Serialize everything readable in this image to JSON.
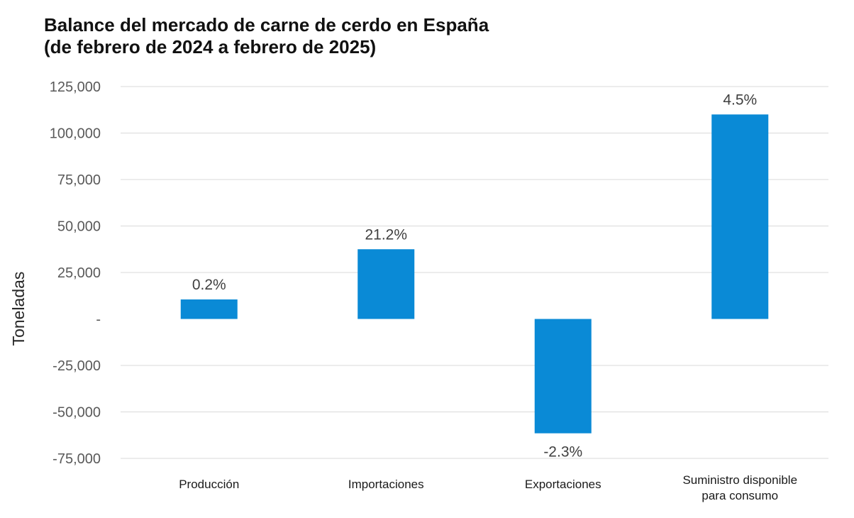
{
  "chart_data": {
    "type": "bar",
    "title": [
      "Balance del mercado de carne de cerdo en España",
      "(de febrero de 2024 a febrero de 2025)"
    ],
    "xlabel": "",
    "ylabel": "Toneladas",
    "categories": [
      [
        "Producción"
      ],
      [
        "Importaciones"
      ],
      [
        "Exportaciones"
      ],
      [
        "Suministro disponible",
        "para consumo"
      ]
    ],
    "values": [
      10500,
      37500,
      -61500,
      110000
    ],
    "data_labels": [
      "0.2%",
      "21.2%",
      "-2.3%",
      "4.5%"
    ],
    "ylim": [
      -75000,
      125000
    ],
    "yticks": [
      125000,
      100000,
      75000,
      50000,
      25000,
      0,
      -25000,
      -50000,
      -75000
    ],
    "ytick_labels": [
      "125,000",
      "100,000",
      "75,000",
      "50,000",
      "25,000",
      "-",
      "-25,000",
      "-50,000",
      "-75,000"
    ],
    "grid": true,
    "legend": "none",
    "colors": {
      "bar": "#0a8ad6",
      "grid": "#d9d9d9",
      "tick_text": "#595959",
      "label_text": "#404040",
      "category_text": "#1a1a1a",
      "axis_title": "#262626"
    }
  }
}
